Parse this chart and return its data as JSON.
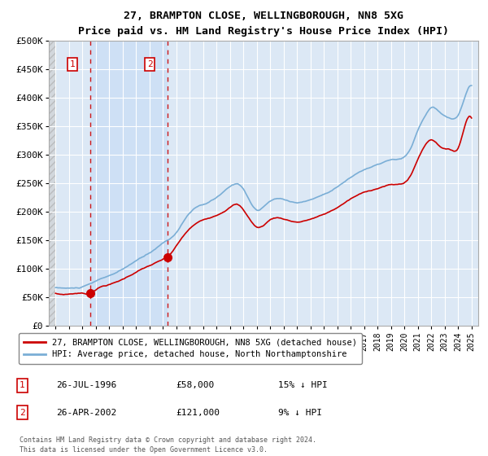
{
  "title": "27, BRAMPTON CLOSE, WELLINGBOROUGH, NN8 5XG",
  "subtitle": "Price paid vs. HM Land Registry's House Price Index (HPI)",
  "ylim": [
    0,
    500000
  ],
  "yticks": [
    0,
    50000,
    100000,
    150000,
    200000,
    250000,
    300000,
    350000,
    400000,
    450000,
    500000
  ],
  "ytick_labels": [
    "£0",
    "£50K",
    "£100K",
    "£150K",
    "£200K",
    "£250K",
    "£300K",
    "£350K",
    "£400K",
    "£450K",
    "£500K"
  ],
  "hpi_color": "#7aaed6",
  "price_color": "#cc0000",
  "bg_color": "#ffffff",
  "plot_bg_color": "#dce8f5",
  "grid_color": "#ffffff",
  "hatch_color": "#bbbbbb",
  "shade_between_color": "#ccdff5",
  "transaction1": {
    "date_x": 1996.57,
    "price": 58000,
    "label": "1",
    "date_str": "26-JUL-1996",
    "price_str": "£58,000",
    "below_hpi": "15% ↓ HPI"
  },
  "transaction2": {
    "date_x": 2002.32,
    "price": 121000,
    "label": "2",
    "date_str": "26-APR-2002",
    "price_str": "£121,000",
    "below_hpi": "9% ↓ HPI"
  },
  "legend_line1": "27, BRAMPTON CLOSE, WELLINGBOROUGH, NN8 5XG (detached house)",
  "legend_line2": "HPI: Average price, detached house, North Northamptonshire",
  "footnote": "Contains HM Land Registry data © Crown copyright and database right 2024.\nThis data is licensed under the Open Government Licence v3.0.",
  "xlim_start": 1993.5,
  "xlim_end": 2025.5
}
